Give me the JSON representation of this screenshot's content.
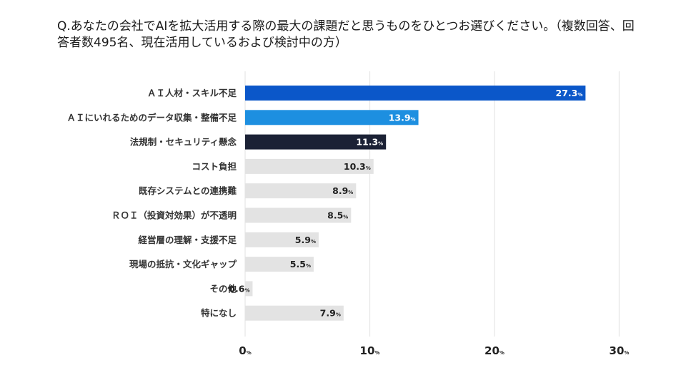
{
  "question": "Q.あなたの会社でAIを拡大活用する際の最大の課題だと思うものをひとつお選びください。（複数回答、回答者数495名、現在活用しているおよび検討中の方）",
  "chart_data": {
    "type": "bar",
    "orientation": "horizontal",
    "categories": [
      "ＡＩ人材・スキル不足",
      "ＡＩにいれるためのデータ収集・整備不足",
      "法規制・セキュリティ懸念",
      "コスト負担",
      "既存システムとの連携難",
      "ＲＯＩ（投資対効果）が不透明",
      "経営層の理解・支援不足",
      "現場の抵抗・文化ギャップ",
      "その他",
      "特になし"
    ],
    "values": [
      27.3,
      13.9,
      11.3,
      10.3,
      8.9,
      8.5,
      5.9,
      5.5,
      0.6,
      7.9
    ],
    "value_labels": [
      "27.3",
      "13.9",
      "11.3",
      "10.3",
      "8.9",
      "8.5",
      "5.9",
      "5.5",
      "0.6",
      "7.9"
    ],
    "value_unit": "%",
    "bar_colors": [
      "#0b57c9",
      "#1d8fe0",
      "#1b2135",
      "#e3e3e3",
      "#e3e3e3",
      "#e3e3e3",
      "#e3e3e3",
      "#e3e3e3",
      "#e3e3e3",
      "#e3e3e3"
    ],
    "label_colors": [
      "#ffffff",
      "#ffffff",
      "#ffffff",
      "#222222",
      "#222222",
      "#222222",
      "#222222",
      "#222222",
      "#222222",
      "#222222"
    ],
    "xlim": [
      0,
      30
    ],
    "xticks": [
      0,
      10,
      20,
      30
    ],
    "xtick_labels": [
      "0",
      "10",
      "20",
      "30"
    ],
    "grid": true,
    "gridline_color": "#e6e6e6"
  }
}
